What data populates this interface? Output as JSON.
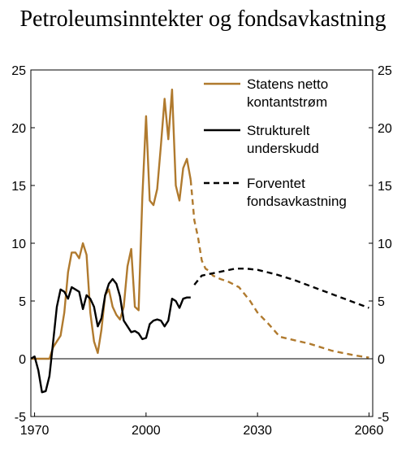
{
  "chart_data": {
    "type": "line",
    "title": "Petroleumsinntekter og fondsavkastning",
    "xlim": [
      1969,
      2061
    ],
    "ylim": [
      -5,
      25
    ],
    "x_ticks": [
      1970,
      2000,
      2030,
      2060
    ],
    "y_ticks": [
      -5,
      0,
      5,
      10,
      15,
      20,
      25
    ],
    "grid": false,
    "legend_position": "top-right",
    "series": [
      {
        "name": "Statens netto kontantstrøm",
        "color": "#b07a2e",
        "style": "solid",
        "x": [
          1969,
          1970,
          1971,
          1972,
          1973,
          1974,
          1975,
          1976,
          1977,
          1978,
          1979,
          1980,
          1981,
          1982,
          1983,
          1984,
          1985,
          1986,
          1987,
          1988,
          1989,
          1990,
          1991,
          1992,
          1993,
          1994,
          1995,
          1996,
          1997,
          1998,
          1999,
          2000,
          2001,
          2002,
          2003,
          2004,
          2005,
          2006,
          2007,
          2008,
          2009,
          2010,
          2011,
          2012
        ],
        "y": [
          0,
          0,
          0,
          0,
          0,
          0,
          1,
          1.5,
          2,
          4,
          7.5,
          9.2,
          9.2,
          8.7,
          10,
          9,
          4,
          1.5,
          0.5,
          2.5,
          5.5,
          6,
          4.5,
          3.8,
          3.4,
          4.5,
          8,
          9.5,
          4.5,
          4.2,
          14,
          21,
          13.7,
          13.3,
          14.7,
          18.5,
          22.5,
          19,
          23.3,
          15,
          13.7,
          16.5,
          17.3,
          15.5
        ]
      },
      {
        "name": "Statens netto kontantstrøm (anslag)",
        "color": "#b07a2e",
        "style": "dashed",
        "x": [
          2012,
          2013,
          2014,
          2015,
          2016,
          2017,
          2018,
          2020,
          2022,
          2025,
          2028,
          2030,
          2033,
          2036,
          2040,
          2044,
          2047,
          2050,
          2053,
          2056,
          2060
        ],
        "y": [
          15.5,
          12,
          10.5,
          8.5,
          7.8,
          7.6,
          7.2,
          6.9,
          6.7,
          6.2,
          5,
          4,
          3,
          1.9,
          1.6,
          1.3,
          1,
          0.7,
          0.5,
          0.3,
          0.1
        ]
      },
      {
        "name": "Strukturelt underskudd",
        "color": "#000000",
        "style": "solid",
        "x": [
          1969,
          1970,
          1971,
          1972,
          1973,
          1974,
          1975,
          1976,
          1977,
          1978,
          1979,
          1980,
          1981,
          1982,
          1983,
          1984,
          1985,
          1986,
          1987,
          1988,
          1989,
          1990,
          1991,
          1992,
          1993,
          1994,
          1995,
          1996,
          1997,
          1998,
          1999,
          2000,
          2001,
          2002,
          2003,
          2004,
          2005,
          2006,
          2007,
          2008,
          2009,
          2010,
          2011,
          2012
        ],
        "y": [
          0,
          0.2,
          -1,
          -2.9,
          -2.8,
          -1.5,
          1.5,
          4.5,
          6,
          5.8,
          5.2,
          6.2,
          6,
          5.8,
          4.3,
          5.5,
          5.2,
          4.5,
          2.8,
          3.5,
          5.5,
          6.5,
          6.9,
          6.5,
          5.4,
          3.3,
          2.8,
          2.3,
          2.4,
          2.2,
          1.7,
          1.8,
          3,
          3.3,
          3.4,
          3.3,
          2.8,
          3.3,
          5.2,
          5,
          4.4,
          5.2,
          5.3,
          5.3
        ]
      },
      {
        "name": "Forventet fondsavkastning",
        "color": "#000000",
        "style": "dashed",
        "x": [
          2013,
          2015,
          2018,
          2021,
          2024,
          2027,
          2030,
          2035,
          2040,
          2045,
          2050,
          2055,
          2060
        ],
        "y": [
          6.4,
          7.2,
          7.4,
          7.6,
          7.8,
          7.8,
          7.7,
          7.3,
          6.8,
          6.2,
          5.6,
          5,
          4.4
        ]
      }
    ],
    "legend": [
      {
        "label_lines": [
          "Statens netto",
          "kontantstrøm"
        ],
        "color": "#b07a2e",
        "style": "solid"
      },
      {
        "label_lines": [
          "Strukturelt",
          "underskudd"
        ],
        "color": "#000000",
        "style": "solid"
      },
      {
        "label_lines": [
          "Forventet",
          "fondsavkastning"
        ],
        "color": "#000000",
        "style": "dashed"
      }
    ]
  }
}
